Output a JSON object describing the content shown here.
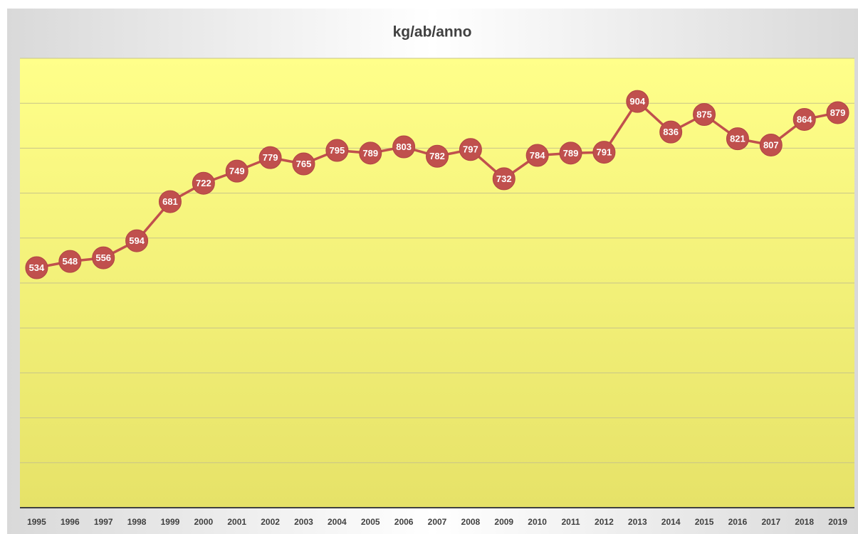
{
  "chart_data": {
    "type": "line",
    "title": "kg/ab/anno",
    "categories": [
      "1995",
      "1996",
      "1997",
      "1998",
      "1999",
      "2000",
      "2001",
      "2002",
      "2003",
      "2004",
      "2005",
      "2006",
      "2007",
      "2008",
      "2009",
      "2010",
      "2011",
      "2012",
      "2013",
      "2014",
      "2015",
      "2016",
      "2017",
      "2018",
      "2019"
    ],
    "values": [
      534,
      548,
      556,
      594,
      681,
      722,
      749,
      779,
      765,
      795,
      789,
      803,
      782,
      797,
      732,
      784,
      789,
      791,
      904,
      836,
      875,
      821,
      807,
      864,
      879
    ],
    "color": "#c0504d",
    "ylim": [
      0,
      1000
    ],
    "yticks": [
      0,
      100,
      200,
      300,
      400,
      500,
      600,
      700,
      800,
      900,
      1000
    ],
    "grid": true
  }
}
